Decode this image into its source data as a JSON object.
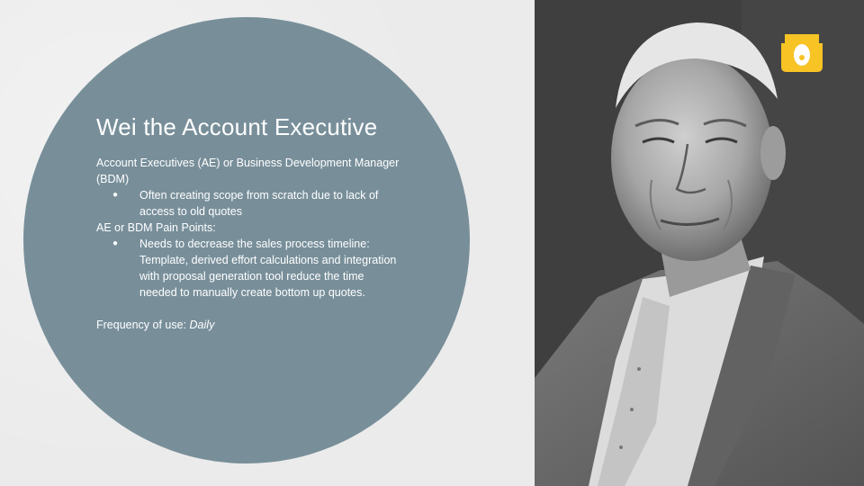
{
  "slide": {
    "title": "Wei the Account Executive",
    "role_text": "Account Executives (AE) or Business Development Manager (BDM)",
    "role_bullets": [
      "Often creating scope from scratch due to lack of access to old quotes"
    ],
    "pain_heading": "AE or BDM Pain Points:",
    "pain_bullets": [
      "Needs to decrease the sales process timeline: Template, derived effort calculations and integration with proposal generation tool reduce the time needed to manually create bottom up quotes."
    ],
    "frequency_label": "Frequency of use: ",
    "frequency_value": "Daily",
    "bullet_glyph": "●"
  },
  "colors": {
    "background": "#ebebeb",
    "circle": "#788f9a",
    "text": "#ffffff",
    "logo": "#f7c325"
  },
  "photo": {
    "subject": "black-and-white portrait of an elderly man in a suit"
  },
  "icons": {
    "brand_logo": "yellow-tag-logo-icon"
  }
}
